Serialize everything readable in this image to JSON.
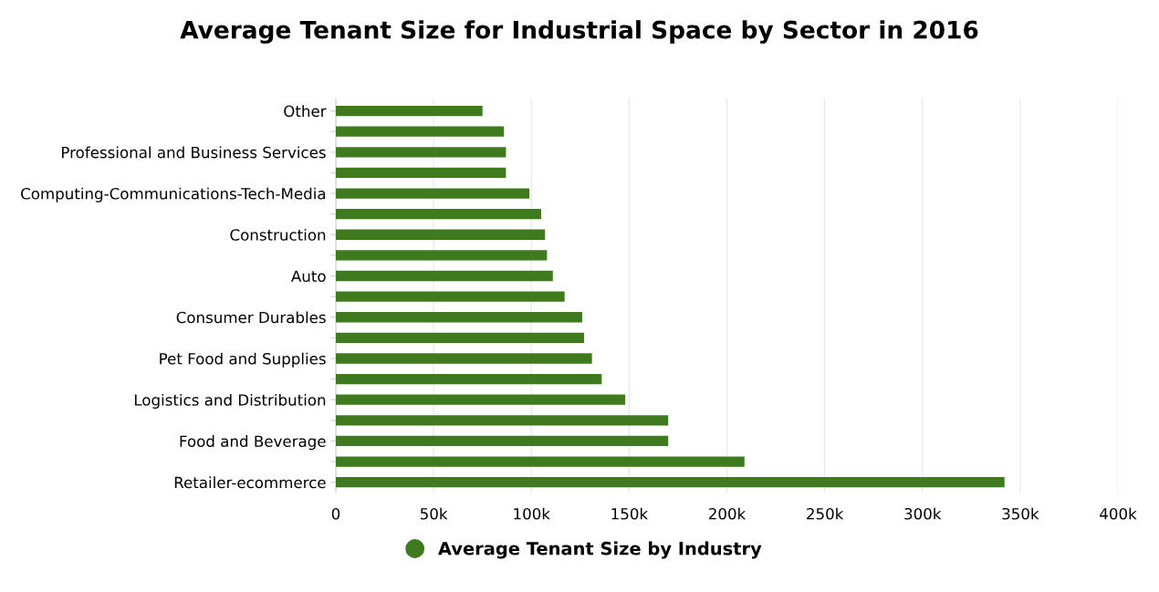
{
  "chart_data": {
    "type": "bar",
    "orientation": "horizontal",
    "title": "Average Tenant Size for Industrial Space by Sector in 2016",
    "categories": [
      "Other",
      null,
      "Professional and Business Services",
      null,
      "Computing-Communications-Tech-Media",
      null,
      "Construction",
      null,
      "Auto",
      null,
      "Consumer Durables",
      null,
      "Pet Food and Supplies",
      null,
      "Logistics and Distribution",
      null,
      "Food and Beverage",
      null,
      "Retailer-ecommerce"
    ],
    "series": [
      {
        "name": "Average Tenant Size by Industry",
        "color": "#3f7a1e",
        "values": [
          75000,
          86000,
          87000,
          87000,
          99000,
          105000,
          107000,
          108000,
          111000,
          117000,
          126000,
          127000,
          131000,
          136000,
          148000,
          170000,
          170000,
          209000,
          342000
        ]
      }
    ],
    "xlim": [
      0,
      400000
    ],
    "xticks": [
      0,
      {
        "value": 50000,
        "label": "50k"
      },
      {
        "value": 100000,
        "label": "100k"
      },
      {
        "value": 150000,
        "label": "150k"
      },
      {
        "value": 200000,
        "label": "200k"
      },
      {
        "value": 250000,
        "label": "250k"
      },
      {
        "value": 300000,
        "label": "300k"
      },
      {
        "value": 350000,
        "label": "350k"
      },
      {
        "value": 400000,
        "label": "400k"
      }
    ],
    "grid": "x",
    "legend": "bottom",
    "marker": "circle"
  }
}
